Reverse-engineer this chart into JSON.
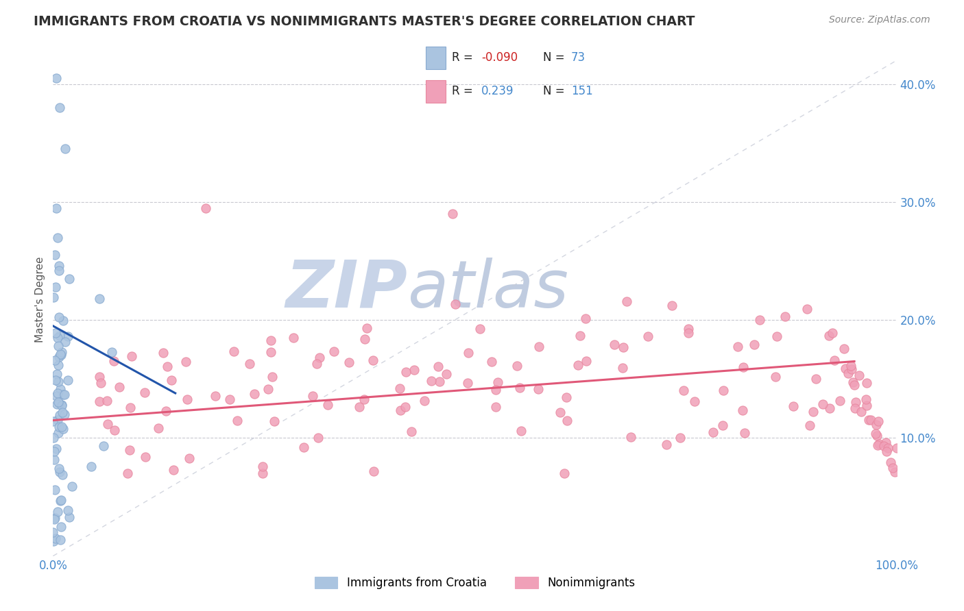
{
  "title": "IMMIGRANTS FROM CROATIA VS NONIMMIGRANTS MASTER'S DEGREE CORRELATION CHART",
  "source": "Source: ZipAtlas.com",
  "ylabel": "Master's Degree",
  "blue_scatter_color": "#aac4e0",
  "pink_scatter_color": "#f0a0b8",
  "blue_line_color": "#2255aa",
  "pink_line_color": "#e05878",
  "diag_line_color": "#c8ccd8",
  "background_color": "#ffffff",
  "watermark_zip_color": "#c8d4e8",
  "watermark_atlas_color": "#c0cce0",
  "title_color": "#303030",
  "axis_color": "#555555",
  "grid_color": "#c8c8d0",
  "source_color": "#888888",
  "tick_color": "#4488cc",
  "legend_border_color": "#cccccc",
  "blue_scatter_edge": "#88aad0",
  "pink_scatter_edge": "#e888a0",
  "blue_R": "-0.090",
  "blue_N": "73",
  "pink_R": "0.239",
  "pink_N": "151",
  "R_label_color": "#222222",
  "blue_R_val_color": "#cc2222",
  "pink_R_val_color": "#4488cc",
  "N_val_color": "#4488cc",
  "ytick_color": "#4488cc",
  "xtick_color": "#4488cc"
}
